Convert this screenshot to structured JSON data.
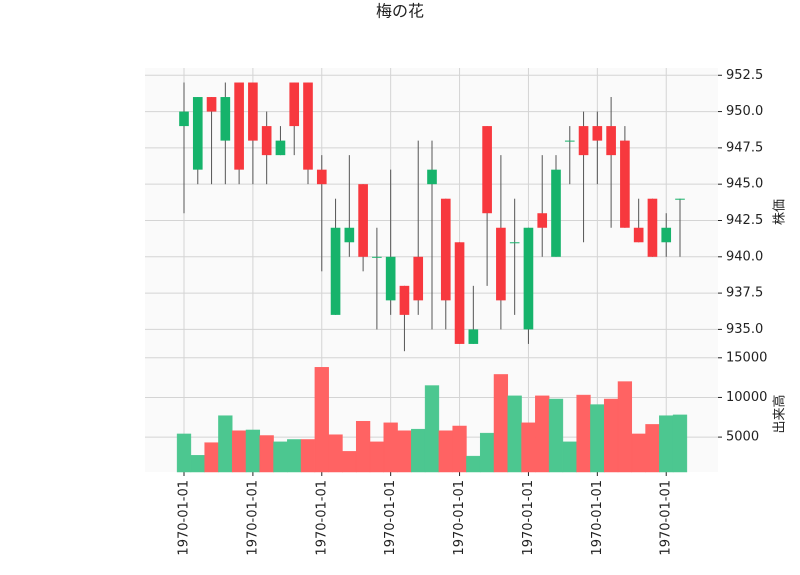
{
  "chart_data": {
    "type": "candlestick",
    "title": "梅の花",
    "categories": [
      "1970-01-01",
      null,
      null,
      null,
      null,
      "1970-01-01",
      null,
      null,
      null,
      null,
      "1970-01-01",
      null,
      null,
      null,
      null,
      "1970-01-01",
      null,
      null,
      null,
      null,
      "1970-01-01",
      null,
      null,
      null,
      null,
      "1970-01-01",
      null,
      null,
      null,
      null,
      "1970-01-01",
      null,
      null,
      null,
      null,
      "1970-01-01",
      null
    ],
    "open": [
      949,
      946,
      951,
      948,
      952,
      952,
      949,
      947,
      952,
      952,
      946,
      936,
      941,
      945,
      940,
      937,
      938,
      940,
      945,
      944,
      941,
      934,
      949,
      942,
      941,
      935,
      943,
      940,
      948,
      949,
      949,
      949,
      948,
      942,
      944,
      941,
      944
    ],
    "high": [
      952,
      951,
      951,
      952,
      952,
      952,
      950,
      949,
      952,
      952,
      947,
      944,
      947,
      945,
      942,
      946,
      938,
      948,
      948,
      944,
      941,
      938,
      949,
      947,
      944,
      942,
      947,
      947,
      949,
      950,
      950,
      951,
      949,
      944,
      944,
      943,
      944
    ],
    "low": [
      943,
      945,
      945,
      945,
      945,
      945,
      945,
      947,
      947,
      945,
      939,
      936,
      940,
      939,
      935,
      936,
      933.5,
      936,
      935,
      935,
      934,
      934,
      938,
      935,
      936,
      934,
      940,
      940,
      945,
      941,
      945,
      942,
      942,
      941,
      940,
      940,
      940
    ],
    "close": [
      950,
      951,
      950,
      951,
      946,
      948,
      947,
      948,
      949,
      946,
      945,
      942,
      942,
      940,
      940,
      940,
      936,
      937,
      946,
      937,
      934,
      935,
      943,
      937,
      941,
      942,
      942,
      946,
      948,
      947,
      948,
      947,
      942,
      941,
      940,
      942,
      944
    ],
    "volume": [
      5400,
      2700,
      4300,
      7700,
      5800,
      5900,
      5200,
      4400,
      4700,
      4700,
      13800,
      5300,
      3200,
      7000,
      4400,
      6800,
      5800,
      6000,
      11500,
      5800,
      6400,
      2600,
      5500,
      12900,
      10200,
      6800,
      10200,
      9800,
      4400,
      10300,
      9100,
      9800,
      12000,
      5400,
      6600,
      7700,
      7800
    ],
    "volume_colors": [
      "#4cc790",
      "#4cc790",
      "#ff6363",
      "#4cc790",
      "#ff6363",
      "#4cc790",
      "#ff6363",
      "#4cc790",
      "#4cc790",
      "#ff6363",
      "#ff6363",
      "#ff6363",
      "#ff6363",
      "#ff6363",
      "#ff6363",
      "#ff6363",
      "#ff6363",
      "#4cc790",
      "#4cc790",
      "#ff6363",
      "#ff6363",
      "#4cc790",
      "#4cc790",
      "#ff6363",
      "#4cc790",
      "#ff6363",
      "#ff6363",
      "#4cc790",
      "#4cc790",
      "#ff6363",
      "#4cc790",
      "#ff6363",
      "#ff6363",
      "#ff6363",
      "#ff6363",
      "#4cc790",
      "#4cc790"
    ],
    "up_color": "#16b36b",
    "down_color": "#f7383e",
    "wick_color": "#555555",
    "ylabel": "株価",
    "ylim": [
      933.1,
      953.0
    ],
    "yticks": [
      {
        "value": 935,
        "label": "935.0"
      },
      937.5,
      {
        "value": 940,
        "label": "940.0"
      },
      942.5,
      {
        "value": 945,
        "label": "945.0"
      },
      947.5,
      {
        "value": 950,
        "label": "950.0"
      },
      952.5
    ],
    "volume_label": "出来高",
    "volume_ylim": [
      600,
      15100
    ],
    "volume_yticks": [
      5000,
      10000,
      15000
    ],
    "grid": true
  }
}
